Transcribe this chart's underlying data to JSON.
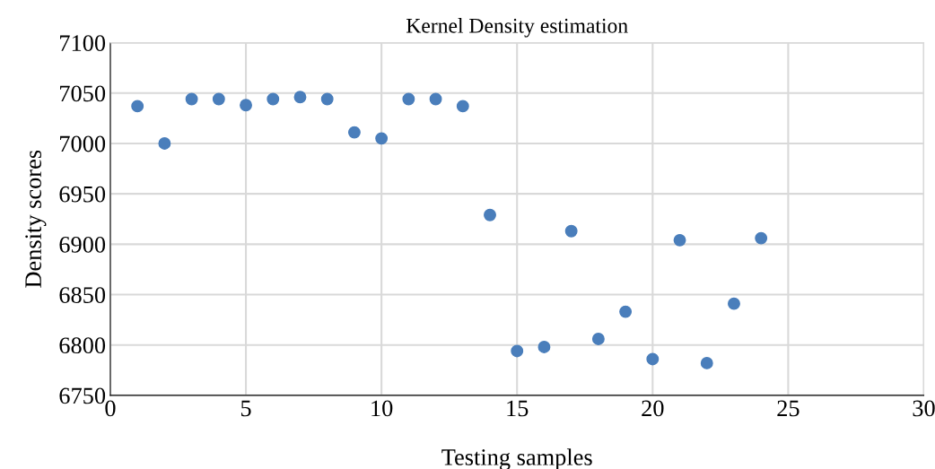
{
  "chart_data": {
    "type": "scatter",
    "title": "Kernel Density estimation",
    "xlabel": "Testing samples",
    "ylabel": "Density scores",
    "x": [
      1,
      2,
      3,
      4,
      5,
      6,
      7,
      8,
      9,
      10,
      11,
      12,
      13,
      14,
      15,
      16,
      17,
      18,
      19,
      20,
      21,
      22,
      23,
      24
    ],
    "series": [
      {
        "color": "#4a7ebb",
        "values": [
          7037,
          7000,
          7044,
          7044,
          7038,
          7044,
          7046,
          7044,
          7011,
          7005,
          7044,
          7044,
          7037,
          6929,
          6794,
          6798,
          6913,
          6806,
          6833,
          6786,
          6904,
          6782,
          6841,
          6906
        ]
      }
    ],
    "xlim": [
      0,
      30
    ],
    "xticks": [
      0,
      5,
      10,
      15,
      20,
      25,
      30
    ],
    "ylim": [
      6750,
      7100
    ],
    "yticks": [
      6750,
      6800,
      6850,
      6900,
      6950,
      7000,
      7050,
      7100
    ],
    "grid": true,
    "marker": "circle"
  }
}
